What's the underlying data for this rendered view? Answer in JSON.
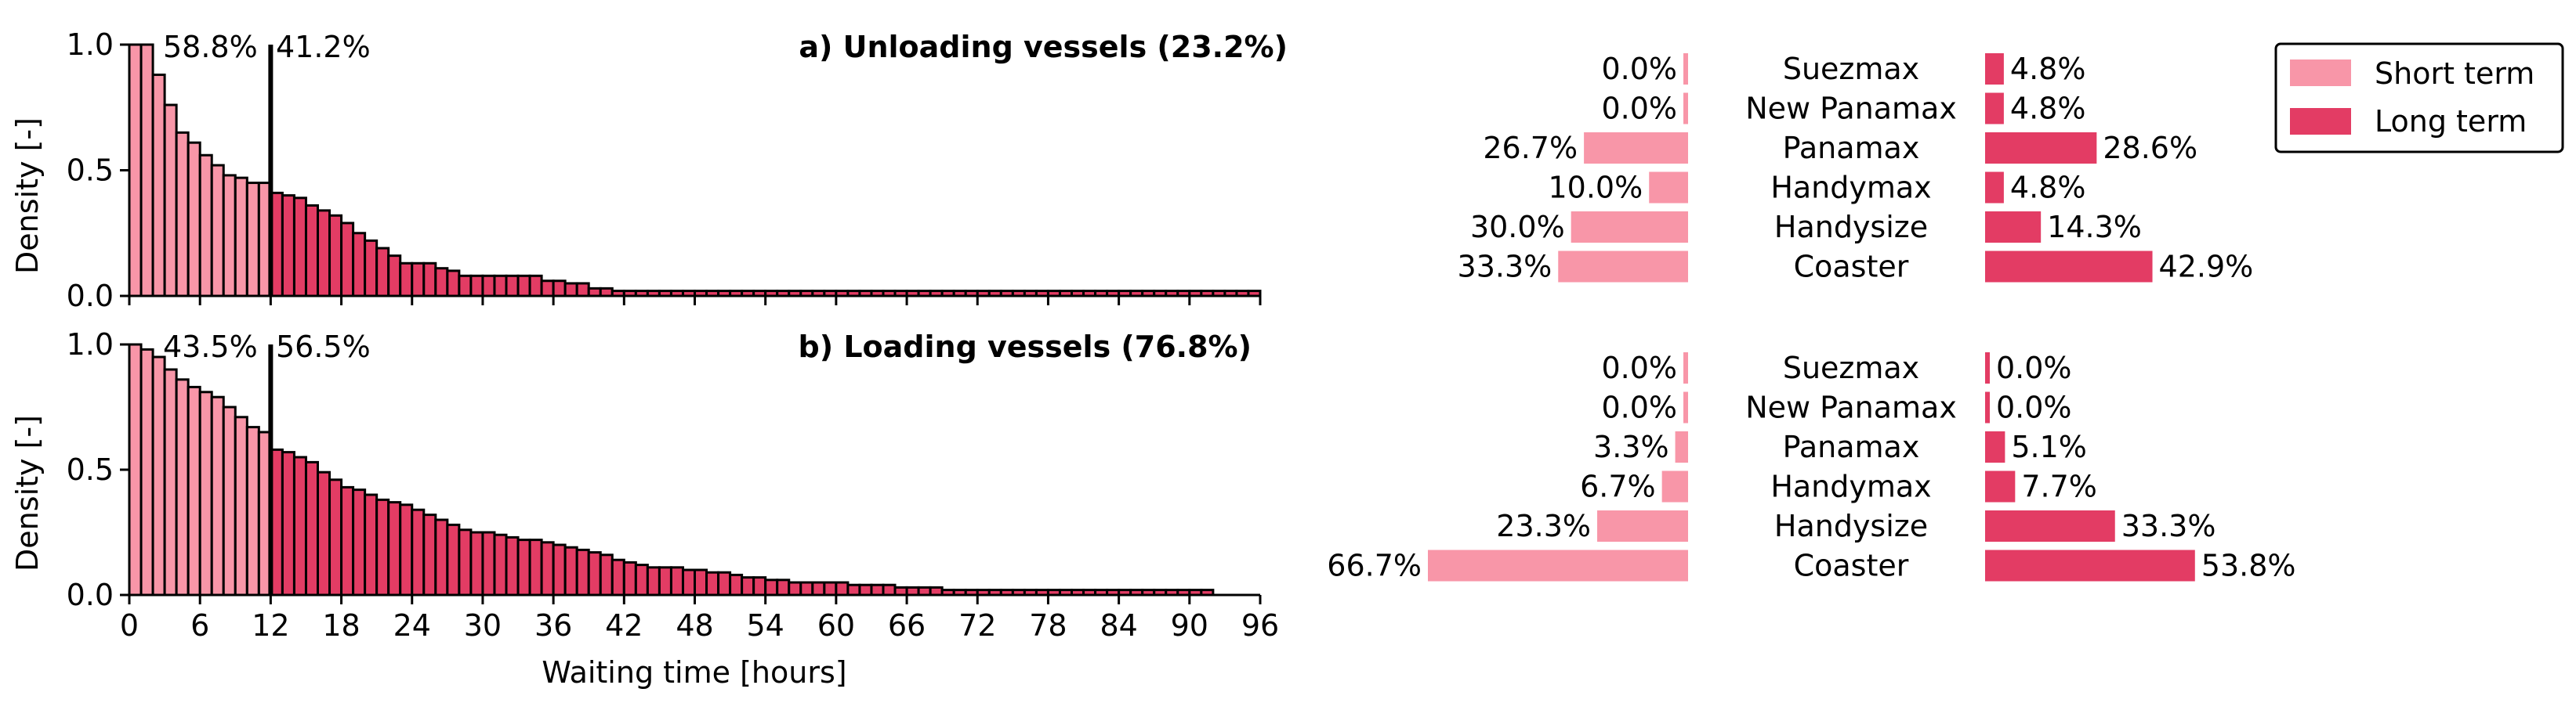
{
  "chart_data": [
    {
      "type": "bar",
      "panel": "a",
      "title": "a) Unloading vessels (23.2%)",
      "xlabel": "",
      "ylabel": "Density [-]",
      "xlim": [
        0,
        96
      ],
      "ylim": [
        0,
        1.0
      ],
      "xticks": [
        "0",
        "6",
        "12",
        "18",
        "24",
        "30",
        "36",
        "42",
        "48",
        "54",
        "60",
        "66",
        "72",
        "78",
        "84",
        "90",
        "96"
      ],
      "yticks": [
        "0.0",
        "0.5",
        "1.0"
      ],
      "threshold_hours": 12,
      "annotations": {
        "short_pct": "58.8%",
        "long_pct": "41.2%"
      },
      "bin_width": 1,
      "values": [
        1.0,
        1.0,
        0.88,
        0.76,
        0.65,
        0.61,
        0.56,
        0.52,
        0.48,
        0.47,
        0.45,
        0.45,
        0.41,
        0.4,
        0.39,
        0.36,
        0.34,
        0.32,
        0.29,
        0.25,
        0.22,
        0.19,
        0.16,
        0.13,
        0.13,
        0.13,
        0.11,
        0.1,
        0.08,
        0.08,
        0.08,
        0.08,
        0.08,
        0.08,
        0.08,
        0.06,
        0.06,
        0.05,
        0.05,
        0.03,
        0.03,
        0.02,
        0.02,
        0.02,
        0.02,
        0.02,
        0.02,
        0.02,
        0.02,
        0.02,
        0.02,
        0.02,
        0.02,
        0.02,
        0.02,
        0.02,
        0.02,
        0.02,
        0.02,
        0.02,
        0.02,
        0.02,
        0.02,
        0.02,
        0.02,
        0.02,
        0.02,
        0.02,
        0.02,
        0.02,
        0.02,
        0.02,
        0.02,
        0.02,
        0.02,
        0.02,
        0.02,
        0.02,
        0.02,
        0.02,
        0.02,
        0.02,
        0.02,
        0.02,
        0.02,
        0.02,
        0.02,
        0.02,
        0.02,
        0.02,
        0.02,
        0.02,
        0.02,
        0.02,
        0.02,
        0.02
      ]
    },
    {
      "type": "bar",
      "panel": "b",
      "title": "b) Loading vessels (76.8%)",
      "xlabel": "Waiting time [hours]",
      "ylabel": "Density [-]",
      "xlim": [
        0,
        96
      ],
      "ylim": [
        0,
        1.0
      ],
      "xticks": [
        "0",
        "6",
        "12",
        "18",
        "24",
        "30",
        "36",
        "42",
        "48",
        "54",
        "60",
        "66",
        "72",
        "78",
        "84",
        "90",
        "96"
      ],
      "yticks": [
        "0.0",
        "0.5",
        "1.0"
      ],
      "threshold_hours": 12,
      "annotations": {
        "short_pct": "43.5%",
        "long_pct": "56.5%"
      },
      "bin_width": 1,
      "values": [
        1.0,
        0.98,
        0.95,
        0.9,
        0.86,
        0.83,
        0.81,
        0.79,
        0.75,
        0.71,
        0.67,
        0.65,
        0.58,
        0.57,
        0.55,
        0.53,
        0.49,
        0.46,
        0.43,
        0.42,
        0.4,
        0.38,
        0.37,
        0.36,
        0.34,
        0.32,
        0.3,
        0.28,
        0.26,
        0.25,
        0.25,
        0.24,
        0.23,
        0.22,
        0.22,
        0.21,
        0.2,
        0.19,
        0.18,
        0.17,
        0.16,
        0.14,
        0.13,
        0.12,
        0.11,
        0.11,
        0.11,
        0.1,
        0.1,
        0.09,
        0.09,
        0.08,
        0.07,
        0.07,
        0.06,
        0.06,
        0.05,
        0.05,
        0.05,
        0.05,
        0.05,
        0.04,
        0.04,
        0.04,
        0.04,
        0.03,
        0.03,
        0.03,
        0.03,
        0.02,
        0.02,
        0.02,
        0.02,
        0.02,
        0.02,
        0.02,
        0.02,
        0.02,
        0.02,
        0.02,
        0.02,
        0.02,
        0.02,
        0.02,
        0.02,
        0.02,
        0.02,
        0.02,
        0.02,
        0.02,
        0.02,
        0.02,
        0,
        0,
        0,
        0
      ]
    },
    {
      "type": "bar",
      "orientation": "horizontal-diverging",
      "panel": "a-vessels",
      "categories": [
        "Suezmax",
        "New Panamax",
        "Panamax",
        "Handymax",
        "Handysize",
        "Coaster"
      ],
      "series": [
        {
          "name": "Short term",
          "values": [
            0.0,
            0.0,
            26.7,
            10.0,
            30.0,
            33.3
          ],
          "labels": [
            "0.0%",
            "0.0%",
            "26.7%",
            "10.0%",
            "30.0%",
            "33.3%"
          ]
        },
        {
          "name": "Long term",
          "values": [
            4.8,
            4.8,
            28.6,
            4.8,
            14.3,
            42.9
          ],
          "labels": [
            "4.8%",
            "4.8%",
            "28.6%",
            "4.8%",
            "14.3%",
            "42.9%"
          ]
        }
      ]
    },
    {
      "type": "bar",
      "orientation": "horizontal-diverging",
      "panel": "b-vessels",
      "categories": [
        "Suezmax",
        "New Panamax",
        "Panamax",
        "Handymax",
        "Handysize",
        "Coaster"
      ],
      "series": [
        {
          "name": "Short term",
          "values": [
            0.0,
            0.0,
            3.3,
            6.7,
            23.3,
            66.7
          ],
          "labels": [
            "0.0%",
            "0.0%",
            "3.3%",
            "6.7%",
            "23.3%",
            "66.7%"
          ]
        },
        {
          "name": "Long term",
          "values": [
            0.0,
            0.0,
            5.1,
            7.7,
            33.3,
            53.8
          ],
          "labels": [
            "0.0%",
            "0.0%",
            "5.1%",
            "7.7%",
            "33.3%",
            "53.8%"
          ]
        }
      ]
    }
  ],
  "legend": {
    "placement": "top-right",
    "items": [
      {
        "label": "Short term",
        "color": "#f896a8"
      },
      {
        "label": "Long term",
        "color": "#e33c64"
      }
    ]
  },
  "colors": {
    "short": "#f896a8",
    "long": "#e33c64",
    "edge": "#000000"
  }
}
